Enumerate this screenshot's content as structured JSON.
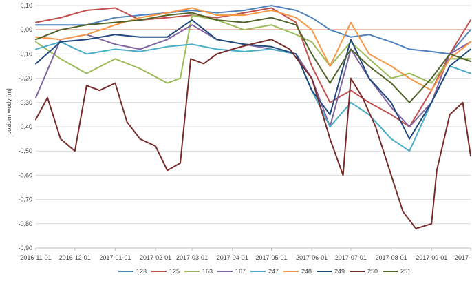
{
  "chart_data": {
    "type": "line",
    "title": "",
    "xlabel": "",
    "ylabel": "poziom wody [m]",
    "ylim": [
      -0.9,
      0.1
    ],
    "yticks": [
      "0,10",
      "0,00",
      "-0,10",
      "-0,20",
      "-0,30",
      "-0,40",
      "-0,50",
      "-0,60",
      "-0,70",
      "-0,80",
      "-0,90"
    ],
    "yticks_values": [
      0.1,
      0.0,
      -0.1,
      -0.2,
      -0.3,
      -0.4,
      -0.5,
      -0.6,
      -0.7,
      -0.8,
      -0.9
    ],
    "xlim": [
      "2016-11-01",
      "2017-10-01"
    ],
    "xticks": [
      "2016-11-01",
      "2016-12-01",
      "2017-01-01",
      "2017-02-01",
      "2017-03-01",
      "2017-04-01",
      "2017-05-01",
      "2017-06-01",
      "2017-07-01",
      "2017-08-01",
      "2017-09-01",
      "2017-10-01"
    ],
    "xtick_labels": [
      "2016-11-01",
      "2016-12-01",
      "2017-01-01",
      "2017-02-01",
      "2017-03-01",
      "2017-04-01",
      "2017-05-01",
      "2017-06-01",
      "2017-07-01",
      "2017-08-01",
      "2017-09-01",
      "2017-"
    ],
    "grid": "horizontal",
    "legend_position": "bottom",
    "reference_line": {
      "y": 0.0,
      "color": "#C0504D"
    },
    "series": [
      {
        "name": "123",
        "color": "#4F81BD",
        "x": [
          "2016-11-01",
          "2016-11-20",
          "2016-12-10",
          "2017-01-01",
          "2017-01-20",
          "2017-02-10",
          "2017-03-01",
          "2017-03-20",
          "2017-04-10",
          "2017-05-01",
          "2017-05-20",
          "2017-06-01",
          "2017-06-15",
          "2017-07-01",
          "2017-07-15",
          "2017-08-01",
          "2017-08-15",
          "2017-09-01",
          "2017-09-15",
          "2017-10-01"
        ],
        "y": [
          0.02,
          0.02,
          0.02,
          0.05,
          0.06,
          0.07,
          0.08,
          0.07,
          0.08,
          0.1,
          0.08,
          0.05,
          0.0,
          -0.03,
          -0.02,
          -0.05,
          -0.08,
          -0.09,
          -0.1,
          0.0
        ]
      },
      {
        "name": "125",
        "color": "#C0504D",
        "x": [
          "2016-11-01",
          "2016-11-20",
          "2016-12-10",
          "2017-01-01",
          "2017-01-20",
          "2017-02-10",
          "2017-03-01",
          "2017-03-20",
          "2017-04-10",
          "2017-05-01",
          "2017-05-20",
          "2017-06-01",
          "2017-06-15",
          "2017-07-01",
          "2017-07-15",
          "2017-08-01",
          "2017-08-15",
          "2017-09-01",
          "2017-09-15",
          "2017-10-01"
        ],
        "y": [
          0.03,
          0.05,
          0.08,
          0.09,
          0.04,
          0.05,
          0.06,
          0.05,
          0.07,
          0.09,
          0.03,
          -0.15,
          -0.3,
          -0.25,
          -0.3,
          -0.35,
          -0.4,
          -0.25,
          -0.1,
          0.04
        ]
      },
      {
        "name": "163",
        "color": "#9BBB59",
        "x": [
          "2016-11-01",
          "2016-11-20",
          "2016-12-10",
          "2017-01-01",
          "2017-01-20",
          "2017-02-10",
          "2017-02-20",
          "2017-03-01",
          "2017-03-20",
          "2017-04-10",
          "2017-05-01",
          "2017-05-20",
          "2017-06-01",
          "2017-06-15",
          "2017-07-01",
          "2017-07-15",
          "2017-08-01",
          "2017-08-15",
          "2017-09-01",
          "2017-09-15",
          "2017-10-01"
        ],
        "y": [
          -0.05,
          -0.12,
          -0.18,
          -0.12,
          -0.16,
          -0.22,
          -0.2,
          0.06,
          0.04,
          0.0,
          0.02,
          -0.02,
          -0.05,
          -0.15,
          -0.05,
          -0.12,
          -0.2,
          -0.18,
          -0.22,
          -0.12,
          -0.12
        ]
      },
      {
        "name": "167",
        "color": "#8064A2",
        "x": [
          "2016-11-01",
          "2016-11-20",
          "2016-12-10",
          "2017-01-01",
          "2017-01-20",
          "2017-02-10",
          "2017-03-01",
          "2017-03-20",
          "2017-04-10",
          "2017-05-01",
          "2017-05-20",
          "2017-06-01",
          "2017-06-15",
          "2017-07-01",
          "2017-07-15",
          "2017-08-01",
          "2017-08-15",
          "2017-09-01",
          "2017-09-15",
          "2017-10-01"
        ],
        "y": [
          -0.28,
          -0.04,
          -0.02,
          -0.06,
          -0.08,
          -0.04,
          0.02,
          -0.04,
          -0.06,
          -0.08,
          -0.1,
          -0.2,
          -0.4,
          -0.08,
          -0.2,
          -0.32,
          -0.4,
          -0.3,
          -0.1,
          -0.05
        ]
      },
      {
        "name": "247",
        "color": "#4BACC6",
        "x": [
          "2016-11-01",
          "2016-11-20",
          "2016-12-10",
          "2017-01-01",
          "2017-01-20",
          "2017-02-10",
          "2017-03-01",
          "2017-03-20",
          "2017-04-10",
          "2017-05-01",
          "2017-05-20",
          "2017-06-01",
          "2017-06-15",
          "2017-07-01",
          "2017-07-15",
          "2017-08-01",
          "2017-08-15",
          "2017-09-01",
          "2017-09-15",
          "2017-10-01"
        ],
        "y": [
          -0.08,
          -0.05,
          -0.1,
          -0.08,
          -0.09,
          -0.07,
          -0.06,
          -0.08,
          -0.09,
          -0.08,
          -0.1,
          -0.25,
          -0.4,
          -0.3,
          -0.35,
          -0.45,
          -0.5,
          -0.3,
          -0.15,
          -0.18
        ]
      },
      {
        "name": "248",
        "color": "#F79646",
        "x": [
          "2016-11-01",
          "2016-11-20",
          "2016-12-10",
          "2017-01-01",
          "2017-01-20",
          "2017-02-10",
          "2017-03-01",
          "2017-03-20",
          "2017-04-10",
          "2017-05-01",
          "2017-05-20",
          "2017-06-01",
          "2017-06-15",
          "2017-07-01",
          "2017-07-15",
          "2017-08-01",
          "2017-08-15",
          "2017-09-01",
          "2017-09-15",
          "2017-10-01"
        ],
        "y": [
          -0.03,
          -0.04,
          -0.02,
          0.02,
          0.05,
          0.07,
          0.09,
          0.06,
          0.06,
          0.08,
          0.05,
          0.0,
          -0.15,
          0.03,
          -0.1,
          -0.15,
          -0.2,
          -0.25,
          -0.12,
          -0.05
        ]
      },
      {
        "name": "249",
        "color": "#1F497D",
        "x": [
          "2016-11-01",
          "2016-11-20",
          "2016-12-10",
          "2017-01-01",
          "2017-01-20",
          "2017-02-10",
          "2017-03-01",
          "2017-03-20",
          "2017-04-10",
          "2017-05-01",
          "2017-05-20",
          "2017-06-01",
          "2017-06-15",
          "2017-07-01",
          "2017-07-15",
          "2017-08-01",
          "2017-08-15",
          "2017-09-01",
          "2017-09-15",
          "2017-10-01"
        ],
        "y": [
          -0.14,
          -0.05,
          -0.04,
          -0.02,
          -0.03,
          -0.03,
          0.04,
          -0.04,
          -0.06,
          -0.07,
          -0.1,
          -0.25,
          -0.35,
          -0.04,
          -0.2,
          -0.3,
          -0.45,
          -0.3,
          -0.15,
          -0.08
        ]
      },
      {
        "name": "250",
        "color": "#772C2A",
        "x": [
          "2016-11-01",
          "2016-11-10",
          "2016-11-20",
          "2016-12-01",
          "2016-12-10",
          "2016-12-20",
          "2017-01-01",
          "2017-01-10",
          "2017-01-20",
          "2017-02-01",
          "2017-02-10",
          "2017-02-20",
          "2017-02-28",
          "2017-03-10",
          "2017-03-20",
          "2017-04-01",
          "2017-04-15",
          "2017-05-01",
          "2017-05-15",
          "2017-06-01",
          "2017-06-15",
          "2017-06-25",
          "2017-07-01",
          "2017-07-10",
          "2017-07-20",
          "2017-08-01",
          "2017-08-10",
          "2017-08-20",
          "2017-09-01",
          "2017-09-05",
          "2017-09-15",
          "2017-09-25",
          "2017-10-01"
        ],
        "y": [
          -0.37,
          -0.28,
          -0.45,
          -0.5,
          -0.23,
          -0.25,
          -0.22,
          -0.38,
          -0.45,
          -0.48,
          -0.58,
          -0.55,
          -0.12,
          -0.14,
          -0.1,
          -0.08,
          -0.06,
          -0.04,
          -0.08,
          -0.2,
          -0.45,
          -0.6,
          -0.2,
          -0.28,
          -0.4,
          -0.6,
          -0.75,
          -0.82,
          -0.8,
          -0.58,
          -0.35,
          -0.3,
          -0.52
        ]
      },
      {
        "name": "251",
        "color": "#4F6228",
        "x": [
          "2016-11-01",
          "2016-11-20",
          "2016-12-10",
          "2017-01-01",
          "2017-01-20",
          "2017-02-10",
          "2017-03-01",
          "2017-03-20",
          "2017-04-10",
          "2017-05-01",
          "2017-05-20",
          "2017-06-01",
          "2017-06-15",
          "2017-07-01",
          "2017-07-15",
          "2017-08-01",
          "2017-08-15",
          "2017-09-01",
          "2017-09-15",
          "2017-10-01"
        ],
        "y": [
          -0.04,
          0.0,
          0.02,
          0.03,
          0.04,
          0.06,
          0.07,
          0.04,
          0.03,
          0.05,
          0.02,
          -0.1,
          -0.22,
          -0.08,
          -0.15,
          -0.22,
          -0.3,
          -0.2,
          -0.1,
          -0.13
        ]
      }
    ]
  }
}
